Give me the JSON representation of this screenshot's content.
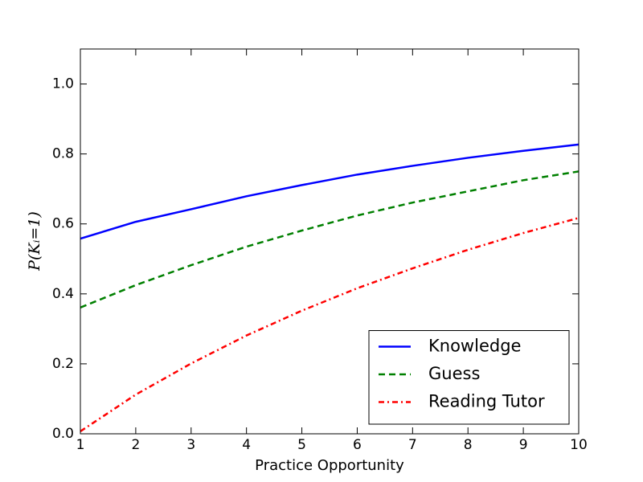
{
  "chart_data": {
    "type": "line",
    "xlabel": "Practice Opportunity",
    "ylabel": "P(Kᵢ=1)",
    "x": [
      1,
      2,
      3,
      4,
      5,
      6,
      7,
      8,
      9,
      10
    ],
    "series": [
      {
        "name": "Knowledge",
        "color": "#0000ff",
        "dash": "solid",
        "values": [
          0.558,
          0.606,
          0.642,
          0.679,
          0.711,
          0.741,
          0.766,
          0.789,
          0.809,
          0.827
        ]
      },
      {
        "name": "Guess",
        "color": "#008000",
        "dash": "dashed",
        "values": [
          0.361,
          0.425,
          0.482,
          0.535,
          0.581,
          0.624,
          0.661,
          0.693,
          0.725,
          0.75
        ]
      },
      {
        "name": "Reading Tutor",
        "color": "#ff0000",
        "dash": "dashdot",
        "values": [
          0.007,
          0.112,
          0.201,
          0.281,
          0.352,
          0.416,
          0.473,
          0.526,
          0.574,
          0.617
        ]
      }
    ],
    "xlim": [
      1,
      10
    ],
    "xticks": [
      1,
      2,
      3,
      4,
      5,
      6,
      7,
      8,
      9,
      10
    ],
    "ylim": [
      0,
      1.1
    ],
    "yticks": [
      {
        "value": 0,
        "label": "0.0"
      },
      0.2,
      0.4,
      0.6,
      0.8,
      {
        "value": 1,
        "label": "1.0"
      }
    ],
    "grid": false,
    "legend": "lower right"
  }
}
